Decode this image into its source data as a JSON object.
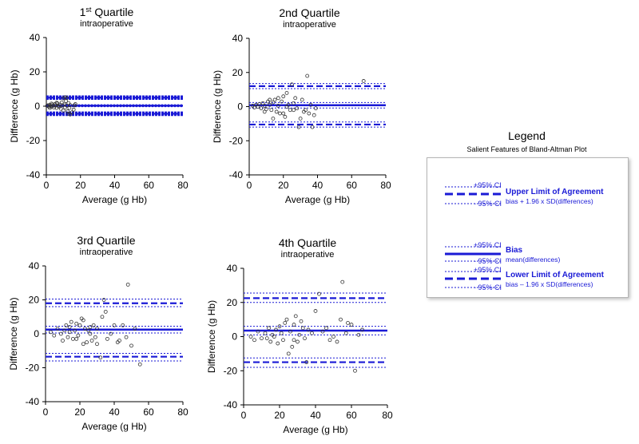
{
  "colors": {
    "line": "#1a1ad6",
    "point": "#333333",
    "axis": "#000000"
  },
  "chart_data": [
    {
      "type": "scatter",
      "title_main": "1",
      "title_sup": "st",
      "title_rest": " Quartile",
      "subtitle": "intraoperative",
      "xlabel": "Average (g Hb)",
      "ylabel": "Difference (g Hb)",
      "xlim": [
        0,
        80
      ],
      "ylim": [
        -40,
        40
      ],
      "xticks": [
        0,
        20,
        40,
        60,
        80
      ],
      "yticks": [
        -40,
        -20,
        0,
        20,
        40
      ],
      "bias": 0.3,
      "bias_ci": [
        -0.3,
        0.9
      ],
      "upper_loa": 5.0,
      "upper_ci": [
        4.4,
        5.6
      ],
      "lower_loa": -4.4,
      "lower_ci": [
        -5.0,
        -3.8
      ],
      "ci_style": "dense",
      "points": [
        [
          0.5,
          0.2
        ],
        [
          1,
          0.5
        ],
        [
          1.5,
          -0.2
        ],
        [
          2,
          0.8
        ],
        [
          2.5,
          0.1
        ],
        [
          3,
          -0.5
        ],
        [
          3.5,
          1
        ],
        [
          4,
          0.3
        ],
        [
          4.5,
          -0.8
        ],
        [
          5,
          1.2
        ],
        [
          5.5,
          0.4
        ],
        [
          6,
          -1
        ],
        [
          6.5,
          1.6
        ],
        [
          7,
          0.2
        ],
        [
          7.5,
          -0.4
        ],
        [
          8,
          0.9
        ],
        [
          8.5,
          -1.5
        ],
        [
          9,
          2.2
        ],
        [
          9.5,
          0.5
        ],
        [
          10,
          -2.5
        ],
        [
          10.5,
          1
        ],
        [
          11,
          -0.7
        ],
        [
          11.5,
          3
        ],
        [
          12,
          0.4
        ],
        [
          12.5,
          -3
        ],
        [
          13,
          1.8
        ],
        [
          13.5,
          -1
        ],
        [
          14,
          0.6
        ],
        [
          15,
          -3.6
        ],
        [
          16,
          -2
        ],
        [
          16.5,
          0.5
        ],
        [
          17,
          1.2
        ],
        [
          10,
          4.6
        ],
        [
          11,
          5.2
        ],
        [
          12,
          4.8
        ],
        [
          13,
          -4.4
        ],
        [
          14,
          -4.8
        ],
        [
          6,
          2
        ],
        [
          3,
          1.5
        ],
        [
          2,
          -1
        ]
      ]
    },
    {
      "type": "scatter",
      "title_main": "2nd Quartile",
      "title_sup": "",
      "title_rest": "",
      "subtitle": "intraoperative",
      "xlabel": "Average (g Hb)",
      "ylabel": "Difference (g Hb)",
      "xlim": [
        0,
        80
      ],
      "ylim": [
        -40,
        40
      ],
      "xticks": [
        0,
        20,
        40,
        60,
        80
      ],
      "yticks": [
        -40,
        -20,
        0,
        20,
        40
      ],
      "bias": 0.8,
      "bias_ci": [
        -0.8,
        2.4
      ],
      "upper_loa": 12,
      "upper_ci": [
        10.5,
        13.5
      ],
      "lower_loa": -10.5,
      "lower_ci": [
        -12,
        -9
      ],
      "ci_style": "sparse",
      "points": [
        [
          2,
          0.5
        ],
        [
          3,
          -0.5
        ],
        [
          4,
          1
        ],
        [
          5,
          0
        ],
        [
          6,
          1.5
        ],
        [
          7,
          -1
        ],
        [
          8,
          2
        ],
        [
          9,
          0.5
        ],
        [
          10,
          -1.5
        ],
        [
          11,
          3
        ],
        [
          12,
          1
        ],
        [
          13,
          -2
        ],
        [
          14,
          2.5
        ],
        [
          15,
          4
        ],
        [
          16,
          -3
        ],
        [
          17,
          0.5
        ],
        [
          18,
          -4
        ],
        [
          19,
          3
        ],
        [
          20,
          6
        ],
        [
          21,
          -6
        ],
        [
          22,
          8
        ],
        [
          23,
          1
        ],
        [
          24,
          -2
        ],
        [
          25,
          13
        ],
        [
          26,
          2
        ],
        [
          27,
          5
        ],
        [
          28,
          -1
        ],
        [
          29,
          -12
        ],
        [
          30,
          -7
        ],
        [
          31,
          4
        ],
        [
          32,
          -3
        ],
        [
          33,
          -2
        ],
        [
          34,
          18
        ],
        [
          35,
          -4
        ],
        [
          36,
          1
        ],
        [
          37,
          -12
        ],
        [
          38,
          -5
        ],
        [
          39,
          -1
        ],
        [
          67,
          15
        ],
        [
          14,
          -7
        ],
        [
          20,
          -4
        ],
        [
          26,
          -2
        ],
        [
          9,
          -3
        ],
        [
          12,
          4
        ],
        [
          17,
          5
        ],
        [
          22,
          0
        ]
      ]
    },
    {
      "type": "scatter",
      "title_main": "3rd Quartile",
      "title_sup": "",
      "title_rest": "",
      "subtitle": "intraoperative",
      "xlabel": "Average (g Hb)",
      "ylabel": "Difference (g Hb)",
      "xlim": [
        0,
        80
      ],
      "ylim": [
        -40,
        40
      ],
      "xticks": [
        0,
        20,
        40,
        60,
        80
      ],
      "yticks": [
        -40,
        -20,
        0,
        20,
        40
      ],
      "bias": 2.5,
      "bias_ci": [
        0.5,
        4.5
      ],
      "upper_loa": 18,
      "upper_ci": [
        16,
        20.5
      ],
      "lower_loa": -13.5,
      "lower_ci": [
        -16,
        -11.5
      ],
      "ci_style": "sparse",
      "points": [
        [
          3,
          1
        ],
        [
          5,
          -1
        ],
        [
          7,
          3
        ],
        [
          9,
          0
        ],
        [
          10,
          -4
        ],
        [
          11,
          2
        ],
        [
          12,
          5
        ],
        [
          13,
          -2
        ],
        [
          14,
          4
        ],
        [
          15,
          7
        ],
        [
          16,
          -3
        ],
        [
          17,
          2
        ],
        [
          18,
          6
        ],
        [
          19,
          -1
        ],
        [
          20,
          5
        ],
        [
          21,
          9
        ],
        [
          22,
          -6
        ],
        [
          23,
          3
        ],
        [
          24,
          -5
        ],
        [
          25,
          2
        ],
        [
          26,
          0
        ],
        [
          27,
          -4
        ],
        [
          28,
          5
        ],
        [
          29,
          -2
        ],
        [
          30,
          3
        ],
        [
          32,
          -14
        ],
        [
          33,
          10
        ],
        [
          34,
          20
        ],
        [
          35,
          13
        ],
        [
          36,
          -3
        ],
        [
          38,
          0
        ],
        [
          40,
          5
        ],
        [
          42,
          -5
        ],
        [
          43,
          -4
        ],
        [
          45,
          5
        ],
        [
          47,
          -2
        ],
        [
          48,
          29
        ],
        [
          50,
          -7
        ],
        [
          52,
          3
        ],
        [
          55,
          -18
        ],
        [
          14,
          1
        ],
        [
          18,
          -3
        ],
        [
          26,
          4
        ],
        [
          30,
          -6
        ],
        [
          22,
          8
        ]
      ]
    },
    {
      "type": "scatter",
      "title_main": "4th Quartile",
      "title_sup": "",
      "title_rest": "",
      "subtitle": "intraoperative",
      "xlabel": "Average (g Hb)",
      "ylabel": "Difference (g Hb)",
      "xlim": [
        0,
        80
      ],
      "ylim": [
        -40,
        40
      ],
      "xticks": [
        0,
        20,
        40,
        60,
        80
      ],
      "yticks": [
        -40,
        -20,
        0,
        20,
        40
      ],
      "bias": 3.5,
      "bias_ci": [
        1,
        6
      ],
      "upper_loa": 22.5,
      "upper_ci": [
        20,
        25.5
      ],
      "lower_loa": -15,
      "lower_ci": [
        -18,
        -12.5
      ],
      "ci_style": "sparse",
      "points": [
        [
          4,
          0
        ],
        [
          6,
          -2
        ],
        [
          8,
          3
        ],
        [
          10,
          -1
        ],
        [
          12,
          2
        ],
        [
          14,
          5
        ],
        [
          15,
          -3
        ],
        [
          16,
          1
        ],
        [
          18,
          4
        ],
        [
          19,
          -4
        ],
        [
          20,
          6
        ],
        [
          21,
          2
        ],
        [
          22,
          -2
        ],
        [
          23,
          8
        ],
        [
          24,
          10
        ],
        [
          25,
          -10
        ],
        [
          26,
          3
        ],
        [
          27,
          -6
        ],
        [
          28,
          7
        ],
        [
          29,
          12
        ],
        [
          30,
          -3
        ],
        [
          31,
          1
        ],
        [
          32,
          9
        ],
        [
          33,
          5
        ],
        [
          34,
          -1
        ],
        [
          35,
          -15
        ],
        [
          36,
          4
        ],
        [
          38,
          2
        ],
        [
          40,
          15
        ],
        [
          42,
          25
        ],
        [
          44,
          3
        ],
        [
          46,
          5
        ],
        [
          48,
          -2
        ],
        [
          50,
          0
        ],
        [
          52,
          -3
        ],
        [
          54,
          10
        ],
        [
          55,
          32
        ],
        [
          57,
          2
        ],
        [
          58,
          8
        ],
        [
          60,
          7
        ],
        [
          62,
          -20
        ],
        [
          64,
          1
        ],
        [
          66,
          4
        ],
        [
          13,
          -1
        ],
        [
          17,
          0
        ],
        [
          28,
          -2
        ]
      ]
    }
  ],
  "legend": {
    "title": "Legend",
    "subtitle": "Salient Features of Bland-Altman Plot",
    "upper": {
      "ci_hi": "+95% CI",
      "label": "Upper Limit of Agreement",
      "desc": "bias + 1.96 x SD(differences)",
      "ci_lo": "- 95% CI"
    },
    "bias": {
      "ci_hi": "+95% CI",
      "label": "Bias",
      "desc": "mean(differences)",
      "ci_lo": "- 95% CI"
    },
    "lower": {
      "ci_hi": "+95% CI",
      "label": "Lower Limit of Agreement",
      "desc": "bias – 1.96 x SD(differences)",
      "ci_lo": "- 95% CI"
    }
  }
}
